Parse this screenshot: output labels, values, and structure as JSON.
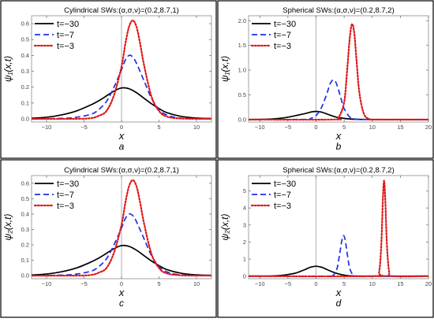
{
  "chart_data": [
    {
      "type": "line",
      "panel": "a",
      "title": "Cylindrical SWs:(α,σ,ν)=(0.2,8.7,1)",
      "xlabel": "x",
      "ylabel": "ψ₁(x,t)",
      "sublabel": "a",
      "xlim": [
        -12,
        12
      ],
      "ylim": [
        -0.02,
        0.65
      ],
      "xticks": [
        -10,
        -5,
        0,
        5,
        10
      ],
      "yticks": [
        0.0,
        0.1,
        0.2,
        0.3,
        0.4,
        0.5,
        0.6
      ],
      "ytick_labels": [
        "0.0",
        "0.1",
        "0.2",
        "0.3",
        "0.4",
        "0.5",
        "0.6"
      ],
      "legend_position": "top-left",
      "series": [
        {
          "name": "t=−30",
          "color": "#000000",
          "dash": "solid",
          "points": [
            [
              -12,
              0.004
            ],
            [
              -10,
              0.01
            ],
            [
              -8,
              0.025
            ],
            [
              -6,
              0.05
            ],
            [
              -4,
              0.09
            ],
            [
              -3,
              0.115
            ],
            [
              -2,
              0.145
            ],
            [
              -1,
              0.175
            ],
            [
              0,
              0.195
            ],
            [
              1,
              0.19
            ],
            [
              2,
              0.165
            ],
            [
              3,
              0.13
            ],
            [
              4,
              0.095
            ],
            [
              5,
              0.065
            ],
            [
              6,
              0.04
            ],
            [
              8,
              0.015
            ],
            [
              10,
              0.005
            ],
            [
              12,
              0.002
            ]
          ]
        },
        {
          "name": "t=−7",
          "color": "#1f2ee6",
          "dash": "dashed",
          "points": [
            [
              -12,
              0.0
            ],
            [
              -8,
              0.003
            ],
            [
              -6,
              0.01
            ],
            [
              -4,
              0.03
            ],
            [
              -3,
              0.06
            ],
            [
              -2,
              0.11
            ],
            [
              -1,
              0.2
            ],
            [
              0,
              0.31
            ],
            [
              0.5,
              0.37
            ],
            [
              1,
              0.4
            ],
            [
              1.5,
              0.39
            ],
            [
              2,
              0.35
            ],
            [
              3,
              0.24
            ],
            [
              4,
              0.13
            ],
            [
              5,
              0.06
            ],
            [
              6,
              0.025
            ],
            [
              8,
              0.004
            ],
            [
              12,
              0.0
            ]
          ]
        },
        {
          "name": "t=−3",
          "color": "#e01818",
          "dash": "dotted",
          "points": [
            [
              -12,
              0.0
            ],
            [
              -6,
              0.0
            ],
            [
              -4,
              0.005
            ],
            [
              -3,
              0.02
            ],
            [
              -2,
              0.05
            ],
            [
              -1,
              0.15
            ],
            [
              0,
              0.33
            ],
            [
              0.5,
              0.47
            ],
            [
              1,
              0.58
            ],
            [
              1.5,
              0.62
            ],
            [
              2,
              0.58
            ],
            [
              2.5,
              0.47
            ],
            [
              3,
              0.34
            ],
            [
              4,
              0.14
            ],
            [
              5,
              0.05
            ],
            [
              6,
              0.015
            ],
            [
              8,
              0.002
            ],
            [
              12,
              0.0
            ]
          ]
        }
      ]
    },
    {
      "type": "line",
      "panel": "b",
      "title": "Spherical SWs:(α,σ,ν)=(0.2,8.7,2)",
      "xlabel": "x",
      "ylabel": "ψ₁(x,t)",
      "sublabel": "b",
      "xlim": [
        -12,
        20
      ],
      "ylim": [
        -0.05,
        2.1
      ],
      "xticks": [
        -10,
        -5,
        0,
        5,
        10,
        15,
        20
      ],
      "yticks": [
        0.0,
        0.5,
        1.0,
        1.5,
        2.0
      ],
      "ytick_labels": [
        "0.0",
        "0.5",
        "1.0",
        "1.5",
        "2.0"
      ],
      "legend_position": "top-left",
      "series": [
        {
          "name": "t=−30",
          "color": "#000000",
          "dash": "solid",
          "points": [
            [
              -12,
              0.0
            ],
            [
              -8,
              0.01
            ],
            [
              -6,
              0.03
            ],
            [
              -4,
              0.07
            ],
            [
              -2,
              0.12
            ],
            [
              -1,
              0.15
            ],
            [
              0,
              0.165
            ],
            [
              1,
              0.15
            ],
            [
              2,
              0.11
            ],
            [
              3,
              0.07
            ],
            [
              4,
              0.04
            ],
            [
              6,
              0.012
            ],
            [
              8,
              0.003
            ],
            [
              12,
              0.0
            ],
            [
              20,
              0.0
            ]
          ]
        },
        {
          "name": "t=−7",
          "color": "#1f2ee6",
          "dash": "dashed",
          "points": [
            [
              -12,
              0.0
            ],
            [
              -2,
              0.003
            ],
            [
              -1,
              0.02
            ],
            [
              0,
              0.08
            ],
            [
              1,
              0.25
            ],
            [
              2,
              0.55
            ],
            [
              2.5,
              0.72
            ],
            [
              3,
              0.8
            ],
            [
              3.5,
              0.76
            ],
            [
              4,
              0.6
            ],
            [
              4.5,
              0.4
            ],
            [
              5,
              0.22
            ],
            [
              6,
              0.05
            ],
            [
              7,
              0.01
            ],
            [
              10,
              0.0
            ],
            [
              20,
              0.0
            ]
          ]
        },
        {
          "name": "t=−3",
          "color": "#e01818",
          "dash": "dotted",
          "points": [
            [
              -12,
              0.0
            ],
            [
              3,
              0.0
            ],
            [
              4,
              0.04
            ],
            [
              5,
              0.35
            ],
            [
              5.5,
              0.95
            ],
            [
              6,
              1.65
            ],
            [
              6.4,
              1.93
            ],
            [
              6.8,
              1.75
            ],
            [
              7.2,
              1.2
            ],
            [
              7.7,
              0.55
            ],
            [
              8.5,
              0.12
            ],
            [
              9.5,
              0.01
            ],
            [
              11,
              0.0
            ],
            [
              20,
              0.0
            ]
          ]
        }
      ]
    },
    {
      "type": "line",
      "panel": "c",
      "title": "Cylindrical SWs:(α,σ,ν)=(0.2,8.7,1)",
      "xlabel": "x",
      "ylabel": "ψ₂(x,t)",
      "sublabel": "c",
      "xlim": [
        -12,
        12
      ],
      "ylim": [
        -0.02,
        0.65
      ],
      "xticks": [
        -10,
        -5,
        0,
        5,
        10
      ],
      "yticks": [
        0.0,
        0.1,
        0.2,
        0.3,
        0.4,
        0.5,
        0.6
      ],
      "ytick_labels": [
        "0.0",
        "0.1",
        "0.2",
        "0.3",
        "0.4",
        "0.5",
        "0.6"
      ],
      "legend_position": "top-left",
      "series": [
        {
          "name": "t=−30",
          "color": "#000000",
          "dash": "solid",
          "points": [
            [
              -12,
              0.004
            ],
            [
              -10,
              0.01
            ],
            [
              -8,
              0.025
            ],
            [
              -6,
              0.05
            ],
            [
              -4,
              0.09
            ],
            [
              -3,
              0.115
            ],
            [
              -2,
              0.145
            ],
            [
              -1,
              0.175
            ],
            [
              0,
              0.195
            ],
            [
              1,
              0.19
            ],
            [
              2,
              0.165
            ],
            [
              3,
              0.13
            ],
            [
              4,
              0.095
            ],
            [
              5,
              0.065
            ],
            [
              6,
              0.04
            ],
            [
              8,
              0.015
            ],
            [
              10,
              0.005
            ],
            [
              12,
              0.002
            ]
          ]
        },
        {
          "name": "t=−7",
          "color": "#1f2ee6",
          "dash": "dashed",
          "points": [
            [
              -12,
              0.0
            ],
            [
              -8,
              0.003
            ],
            [
              -6,
              0.01
            ],
            [
              -4,
              0.03
            ],
            [
              -3,
              0.06
            ],
            [
              -2,
              0.11
            ],
            [
              -1,
              0.2
            ],
            [
              0,
              0.31
            ],
            [
              0.5,
              0.37
            ],
            [
              1,
              0.4
            ],
            [
              1.5,
              0.39
            ],
            [
              2,
              0.35
            ],
            [
              3,
              0.24
            ],
            [
              4,
              0.13
            ],
            [
              5,
              0.06
            ],
            [
              6,
              0.025
            ],
            [
              8,
              0.004
            ],
            [
              12,
              0.0
            ]
          ]
        },
        {
          "name": "t=−3",
          "color": "#e01818",
          "dash": "dotted",
          "points": [
            [
              -12,
              0.0
            ],
            [
              -6,
              0.0
            ],
            [
              -4,
              0.005
            ],
            [
              -3,
              0.02
            ],
            [
              -2,
              0.05
            ],
            [
              -1,
              0.15
            ],
            [
              0,
              0.33
            ],
            [
              0.5,
              0.47
            ],
            [
              1,
              0.58
            ],
            [
              1.5,
              0.62
            ],
            [
              2,
              0.58
            ],
            [
              2.5,
              0.47
            ],
            [
              3,
              0.34
            ],
            [
              4,
              0.14
            ],
            [
              5,
              0.05
            ],
            [
              6,
              0.015
            ],
            [
              8,
              0.002
            ],
            [
              12,
              0.0
            ]
          ]
        }
      ]
    },
    {
      "type": "line",
      "panel": "d",
      "title": "Spherical SWs:(α,σ,ν)=(0.2,8.7,2)",
      "xlabel": "x",
      "ylabel": "ψ₂(x,t)",
      "sublabel": "d",
      "xlim": [
        -12,
        20
      ],
      "ylim": [
        -0.15,
        5.9
      ],
      "xticks": [
        -10,
        -5,
        0,
        5,
        10,
        15,
        20
      ],
      "yticks": [
        0,
        1,
        2,
        3,
        4,
        5
      ],
      "ytick_labels": [
        "0",
        "1",
        "2",
        "3",
        "4",
        "5"
      ],
      "legend_position": "top-left",
      "series": [
        {
          "name": "t=−30",
          "color": "#000000",
          "dash": "solid",
          "points": [
            [
              -12,
              0.0
            ],
            [
              -8,
              0.01
            ],
            [
              -6,
              0.05
            ],
            [
              -4,
              0.15
            ],
            [
              -3,
              0.25
            ],
            [
              -2,
              0.38
            ],
            [
              -1,
              0.52
            ],
            [
              0,
              0.58
            ],
            [
              1,
              0.52
            ],
            [
              2,
              0.38
            ],
            [
              3,
              0.24
            ],
            [
              4,
              0.13
            ],
            [
              5,
              0.06
            ],
            [
              6,
              0.02
            ],
            [
              8,
              0.003
            ],
            [
              12,
              0.0
            ],
            [
              20,
              0.0
            ]
          ]
        },
        {
          "name": "t=−7",
          "color": "#1f2ee6",
          "dash": "dashed",
          "points": [
            [
              -12,
              0.0
            ],
            [
              2,
              0.0
            ],
            [
              3,
              0.04
            ],
            [
              3.7,
              0.4
            ],
            [
              4.2,
              1.3
            ],
            [
              4.6,
              2.1
            ],
            [
              4.9,
              2.38
            ],
            [
              5.2,
              2.1
            ],
            [
              5.6,
              1.2
            ],
            [
              6,
              0.45
            ],
            [
              6.6,
              0.08
            ],
            [
              7.5,
              0.0
            ],
            [
              20,
              0.0
            ]
          ]
        },
        {
          "name": "t=−3",
          "color": "#e01818",
          "dash": "dotted",
          "points": [
            [
              -12,
              0.0
            ],
            [
              10.5,
              0.0
            ],
            [
              11.2,
              0.2
            ],
            [
              11.6,
              1.8
            ],
            [
              11.9,
              4.6
            ],
            [
              12.1,
              5.6
            ],
            [
              12.3,
              4.6
            ],
            [
              12.6,
              1.9
            ],
            [
              13,
              0.25
            ],
            [
              13.5,
              0.0
            ],
            [
              20,
              0.0
            ]
          ]
        }
      ]
    }
  ]
}
